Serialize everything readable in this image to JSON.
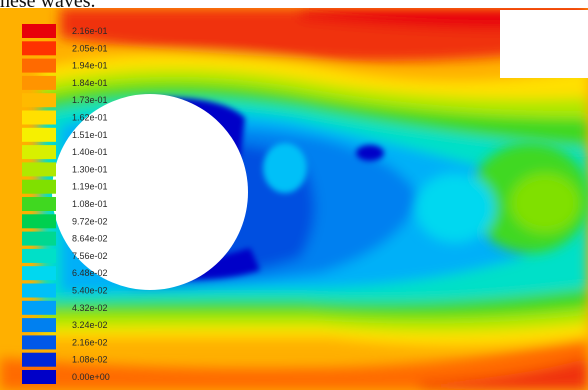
{
  "caption": "hese waves.",
  "legend": {
    "labels": [
      "2.16e-01",
      "2.05e-01",
      "1.94e-01",
      "1.84e-01",
      "1.73e-01",
      "1.62e-01",
      "1.51e-01",
      "1.40e-01",
      "1.30e-01",
      "1.19e-01",
      "1.08e-01",
      "9.72e-02",
      "8.64e-02",
      "7.56e-02",
      "6.48e-02",
      "5.40e-02",
      "4.32e-02",
      "3.24e-02",
      "2.16e-02",
      "1.08e-02",
      "0.00e+00"
    ],
    "colors": [
      "#e8000a",
      "#ff3200",
      "#ff6a00",
      "#ff9400",
      "#ffba00",
      "#ffe000",
      "#f6f000",
      "#d8f000",
      "#b0e800",
      "#80e000",
      "#40d820",
      "#00d050",
      "#00d890",
      "#00e0c8",
      "#00d8f0",
      "#00c0f8",
      "#00a0f8",
      "#0080f0",
      "#0058e8",
      "#0028d8",
      "#0000c8"
    ]
  },
  "colors": {
    "background": "#ffffff",
    "cylinder": "#ffffff",
    "far_field": "#ffd400",
    "wake_low": "#0000c8"
  }
}
